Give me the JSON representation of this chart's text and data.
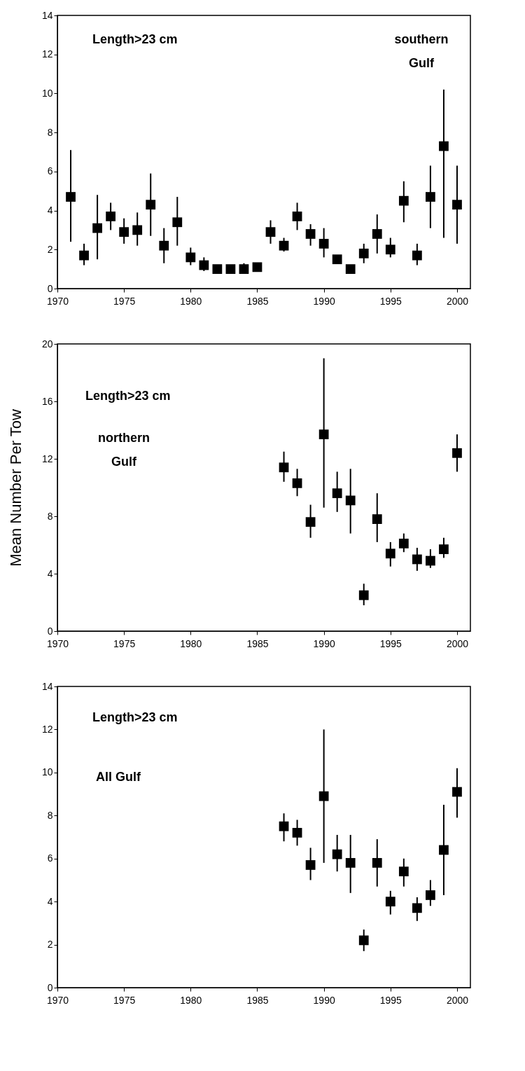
{
  "chart_data": [
    {
      "type": "scatter",
      "marker": "square",
      "grid": false,
      "annotations": [
        "Length>23 cm",
        "southern\nGulf"
      ],
      "x": [
        1971,
        1972,
        1973,
        1974,
        1975,
        1976,
        1977,
        1978,
        1979,
        1980,
        1981,
        1982,
        1983,
        1984,
        1985,
        1986,
        1987,
        1988,
        1989,
        1990,
        1991,
        1992,
        1993,
        1994,
        1995,
        1996,
        1997,
        1998,
        1999,
        2000
      ],
      "series": [
        {
          "color": "#000000",
          "values": [
            4.7,
            1.7,
            3.1,
            3.7,
            2.9,
            3.0,
            4.3,
            2.2,
            3.4,
            1.6,
            1.2,
            1.0,
            1.0,
            1.0,
            1.1,
            2.9,
            2.2,
            3.7,
            2.8,
            2.3,
            1.5,
            1.0,
            1.8,
            2.8,
            2.0,
            4.5,
            1.7,
            4.7,
            7.3,
            4.3
          ],
          "errors": [
            [
              2.4,
              7.1
            ],
            [
              1.2,
              2.3
            ],
            [
              1.5,
              4.8
            ],
            [
              3.0,
              4.4
            ],
            [
              2.3,
              3.6
            ],
            [
              2.2,
              3.9
            ],
            [
              2.7,
              5.9
            ],
            [
              1.3,
              3.1
            ],
            [
              2.2,
              4.7
            ],
            [
              1.2,
              2.1
            ],
            [
              0.9,
              1.6
            ],
            null,
            null,
            [
              1.0,
              1.3
            ],
            null,
            [
              2.3,
              3.5
            ],
            [
              1.9,
              2.6
            ],
            [
              3.0,
              4.4
            ],
            [
              2.2,
              3.3
            ],
            [
              1.6,
              3.1
            ],
            null,
            null,
            [
              1.3,
              2.3
            ],
            [
              1.8,
              3.8
            ],
            [
              1.6,
              2.6
            ],
            [
              3.4,
              5.5
            ],
            [
              1.2,
              2.3
            ],
            [
              3.1,
              6.3
            ],
            [
              2.6,
              10.2
            ],
            [
              2.3,
              6.3
            ]
          ]
        }
      ],
      "xlim": [
        1970,
        2001
      ],
      "xticks": [
        1970,
        1975,
        1980,
        1985,
        1990,
        1995,
        2000
      ],
      "ylim": [
        0,
        14
      ],
      "yticks": [
        0,
        2,
        4,
        6,
        8,
        10,
        12,
        14
      ]
    },
    {
      "type": "scatter",
      "marker": "square",
      "grid": false,
      "ylabel": "Mean Number Per Tow",
      "annotations": [
        "Length>23 cm",
        "northern\nGulf"
      ],
      "x": [
        1987,
        1988,
        1989,
        1990,
        1991,
        1992,
        1993,
        1994,
        1995,
        1996,
        1997,
        1998,
        1999,
        2000
      ],
      "series": [
        {
          "color": "#000000",
          "values": [
            11.4,
            10.3,
            7.6,
            13.7,
            9.6,
            9.1,
            2.5,
            7.8,
            5.4,
            6.1,
            5.0,
            4.9,
            5.7,
            12.4
          ],
          "errors": [
            [
              10.4,
              12.5
            ],
            [
              9.4,
              11.3
            ],
            [
              6.5,
              8.8
            ],
            [
              8.6,
              19.0
            ],
            [
              8.3,
              11.1
            ],
            [
              6.8,
              11.3
            ],
            [
              1.8,
              3.3
            ],
            [
              6.2,
              9.6
            ],
            [
              4.5,
              6.2
            ],
            [
              5.5,
              6.8
            ],
            [
              4.2,
              5.8
            ],
            [
              4.4,
              5.7
            ],
            [
              5.1,
              6.5
            ],
            [
              11.1,
              13.7
            ]
          ]
        }
      ],
      "xlim": [
        1970,
        2001
      ],
      "xticks": [
        1970,
        1975,
        1980,
        1985,
        1990,
        1995,
        2000
      ],
      "ylim": [
        0,
        20
      ],
      "yticks": [
        0,
        4,
        8,
        12,
        16,
        20
      ]
    },
    {
      "type": "scatter",
      "marker": "square",
      "grid": false,
      "annotations": [
        "Length>23 cm",
        "All Gulf"
      ],
      "x": [
        1987,
        1988,
        1989,
        1990,
        1991,
        1992,
        1993,
        1994,
        1995,
        1996,
        1997,
        1998,
        1999,
        2000
      ],
      "series": [
        {
          "color": "#000000",
          "values": [
            7.5,
            7.2,
            5.7,
            8.9,
            6.2,
            5.8,
            2.2,
            5.8,
            4.0,
            5.4,
            3.7,
            4.3,
            6.4,
            9.1
          ],
          "errors": [
            [
              6.8,
              8.1
            ],
            [
              6.6,
              7.8
            ],
            [
              5.0,
              6.5
            ],
            [
              5.8,
              12.0
            ],
            [
              5.4,
              7.1
            ],
            [
              4.4,
              7.1
            ],
            [
              1.7,
              2.7
            ],
            [
              4.7,
              6.9
            ],
            [
              3.4,
              4.5
            ],
            [
              4.7,
              6.0
            ],
            [
              3.1,
              4.2
            ],
            [
              3.8,
              5.0
            ],
            [
              4.3,
              8.5
            ],
            [
              7.9,
              10.2
            ]
          ]
        }
      ],
      "xlim": [
        1970,
        2001
      ],
      "xticks": [
        1970,
        1975,
        1980,
        1985,
        1990,
        1995,
        2000
      ],
      "ylim": [
        0,
        14
      ],
      "yticks": [
        0,
        2,
        4,
        6,
        8,
        10,
        12,
        14
      ]
    }
  ]
}
